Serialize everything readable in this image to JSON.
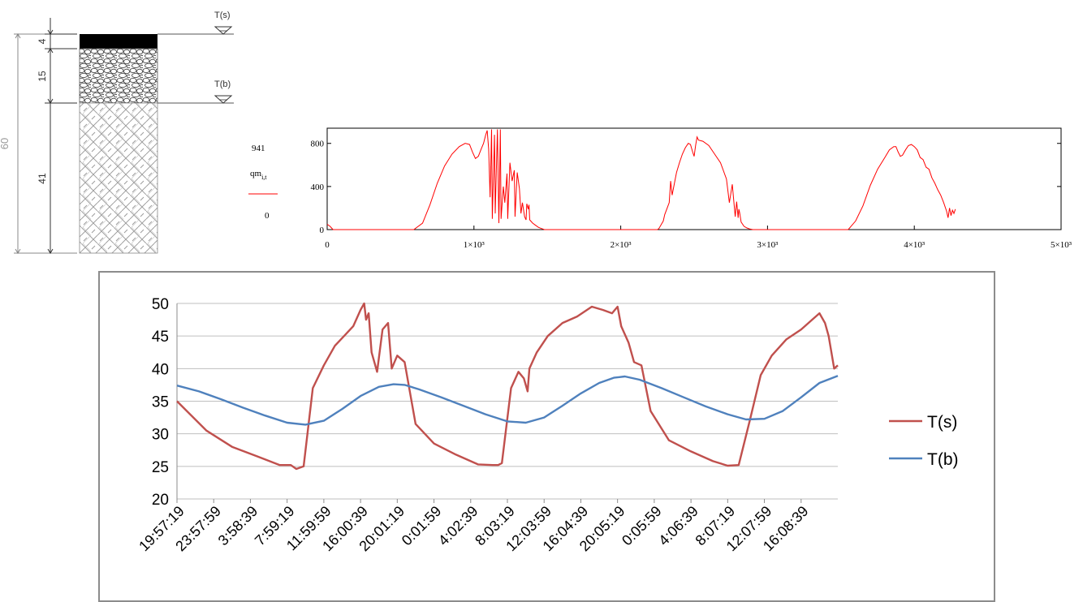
{
  "layers": {
    "total_depth_label": "60",
    "dims": [
      "4",
      "15",
      "41"
    ],
    "level_top_label": "T(s)",
    "level_mid_label": "T(b)"
  },
  "mathcad": {
    "y_max_label": "941",
    "y_min_label": "0",
    "y_var_main": "qm",
    "y_var_sub": "i,t",
    "colors": {
      "series": "#ff0000",
      "frame": "#000000"
    }
  },
  "chart_data": [
    {
      "type": "line",
      "title": "",
      "xlabel": "",
      "ylabel": "qm_{i,t}",
      "xlim": [
        0,
        5000
      ],
      "ylim": [
        0,
        941
      ],
      "x_ticks": [
        0,
        1000,
        2000,
        3000,
        4000,
        5000
      ],
      "x_tick_labels": [
        "0",
        "1×10³",
        "2×10³",
        "3×10³",
        "4×10³",
        "5×10³"
      ],
      "y_ticks": [
        0,
        400,
        800
      ],
      "y_tick_labels": [
        "0",
        "400",
        "800"
      ],
      "grid": false,
      "series": [
        {
          "color": "#ff0000",
          "x": [
            0,
            20,
            40,
            590,
            650,
            700,
            750,
            800,
            850,
            900,
            940,
            970,
            990,
            1010,
            1030,
            1050,
            1065,
            1080,
            1090,
            1100,
            1110,
            1120,
            1125,
            1140,
            1145,
            1160,
            1170,
            1180,
            1185,
            1200,
            1210,
            1225,
            1230,
            1245,
            1260,
            1275,
            1280,
            1295,
            1310,
            1320,
            1330,
            1345,
            1355,
            1360,
            1370,
            1375,
            1380,
            1400,
            1420,
            1440,
            1460,
            1480,
            1500,
            1560,
            1620,
            1680,
            1740,
            1760,
            1780,
            1800,
            1820,
            1850,
            1900,
            1950,
            2000,
            2050,
            2100,
            2150,
            2200,
            2250,
            2260,
            2290,
            2300,
            2330,
            2340,
            2350,
            2380,
            2400,
            2420,
            2440,
            2460,
            2475,
            2490,
            2500,
            2510,
            2520,
            2530,
            2560,
            2600,
            2640,
            2680,
            2720,
            2740,
            2760,
            2780,
            2790,
            2800,
            2805,
            2810,
            2820,
            2840,
            2860,
            2880,
            2900,
            2920,
            2960,
            3050,
            3150,
            3250,
            3350,
            3450,
            3500,
            3550,
            3600,
            3650,
            3700,
            3750,
            3800,
            3830,
            3860,
            3875,
            3890,
            3905,
            3920,
            3940,
            3960,
            3980,
            4000,
            4020,
            4040,
            4060,
            4080,
            4100,
            4120,
            4140,
            4160,
            4180,
            4200,
            4220,
            4230,
            4240,
            4250,
            4260,
            4270,
            4280
          ],
          "values": [
            50,
            30,
            0,
            0,
            60,
            230,
            430,
            590,
            700,
            770,
            800,
            790,
            720,
            660,
            680,
            750,
            800,
            880,
            920,
            750,
            300,
            930,
            100,
            880,
            150,
            930,
            60,
            930,
            100,
            400,
            250,
            520,
            100,
            620,
            450,
            550,
            120,
            530,
            380,
            150,
            250,
            120,
            90,
            240,
            190,
            230,
            90,
            60,
            40,
            20,
            10,
            0,
            0,
            0,
            0,
            0,
            0,
            0,
            0,
            0,
            0,
            0,
            0,
            0,
            0,
            0,
            0,
            0,
            0,
            0,
            10,
            80,
            140,
            250,
            450,
            320,
            530,
            620,
            700,
            760,
            800,
            790,
            720,
            680,
            780,
            860,
            830,
            820,
            780,
            700,
            620,
            470,
            250,
            420,
            120,
            260,
            110,
            190,
            160,
            70,
            30,
            15,
            5,
            0,
            0,
            0,
            0,
            0,
            0,
            0,
            0,
            0,
            0,
            80,
            220,
            410,
            560,
            670,
            740,
            770,
            770,
            720,
            680,
            690,
            740,
            780,
            790,
            770,
            740,
            670,
            650,
            580,
            560,
            480,
            430,
            370,
            320,
            250,
            170,
            110,
            200,
            130,
            180,
            150,
            190
          ]
        }
      ]
    },
    {
      "type": "line",
      "title": "",
      "xlabel": "",
      "ylabel": "",
      "ylim": [
        20,
        50
      ],
      "y_ticks": [
        20,
        25,
        30,
        35,
        40,
        45,
        50
      ],
      "grid": true,
      "legend_position": "right",
      "categories": [
        "19:57:19",
        "23:57:59",
        "3:58:39",
        "7:59:19",
        "11:59:59",
        "16:00:39",
        "20:01:19",
        "0:01:59",
        "4:02:39",
        "8:03:19",
        "12:03:59",
        "16:04:39",
        "20:05:19",
        "0:05:59",
        "4:06:39",
        "8:07:19",
        "12:07:59",
        "16:08:39"
      ],
      "series": [
        {
          "name": "T(s)",
          "color": "#c0504d",
          "x": [
            0,
            0.8,
            1.5,
            2.2,
            2.8,
            3.1,
            3.25,
            3.45,
            3.7,
            4.0,
            4.3,
            4.55,
            4.8,
            5.0,
            5.1,
            5.15,
            5.22,
            5.3,
            5.45,
            5.6,
            5.75,
            5.85,
            6.0,
            6.2,
            6.5,
            7.0,
            7.6,
            8.2,
            8.6,
            8.75,
            8.85,
            9.1,
            9.3,
            9.45,
            9.55,
            9.6,
            9.8,
            10.1,
            10.5,
            10.9,
            11.3,
            11.6,
            11.85,
            12.0,
            12.1,
            12.3,
            12.45,
            12.65,
            12.9,
            13.4,
            14.0,
            14.6,
            15.0,
            15.3,
            15.6,
            15.9,
            16.2,
            16.6,
            17.0,
            17.3,
            17.5,
            17.65,
            17.75,
            17.9,
            18.0
          ],
          "values": [
            35,
            30.5,
            28,
            26.5,
            25.2,
            25.2,
            24.6,
            25.0,
            37.0,
            40.5,
            43.5,
            45.0,
            46.5,
            49.0,
            50.0,
            47.5,
            48.5,
            42.5,
            39.5,
            46.0,
            47.0,
            40.0,
            42.0,
            41.0,
            31.5,
            28.5,
            26.8,
            25.3,
            25.2,
            25.2,
            25.5,
            37.0,
            39.5,
            38.5,
            36.5,
            40.0,
            42.5,
            45.0,
            47.0,
            48.0,
            49.5,
            49.0,
            48.5,
            49.5,
            46.5,
            44.0,
            41.0,
            40.5,
            33.5,
            29.0,
            27.3,
            25.8,
            25.1,
            25.2,
            32.0,
            39.0,
            42.0,
            44.5,
            46.0,
            47.5,
            48.5,
            47.0,
            45.0,
            40.0,
            40.5
          ]
        },
        {
          "name": "T(b)",
          "color": "#4f81bd",
          "x": [
            0,
            0.6,
            1.2,
            1.8,
            2.4,
            3.0,
            3.5,
            4.0,
            4.5,
            5.0,
            5.5,
            5.9,
            6.2,
            6.6,
            7.2,
            7.8,
            8.4,
            9.0,
            9.5,
            10.0,
            10.5,
            11.0,
            11.5,
            11.9,
            12.2,
            12.6,
            13.2,
            13.8,
            14.4,
            15.0,
            15.5,
            16.0,
            16.5,
            17.0,
            17.5,
            18.0
          ],
          "values": [
            37.4,
            36.5,
            35.3,
            34.0,
            32.8,
            31.7,
            31.4,
            32.0,
            33.8,
            35.8,
            37.2,
            37.6,
            37.5,
            36.8,
            35.6,
            34.3,
            33.0,
            31.9,
            31.7,
            32.5,
            34.3,
            36.2,
            37.8,
            38.6,
            38.8,
            38.3,
            37.0,
            35.6,
            34.2,
            33.0,
            32.2,
            32.3,
            33.5,
            35.6,
            37.8,
            38.9
          ]
        }
      ]
    }
  ]
}
